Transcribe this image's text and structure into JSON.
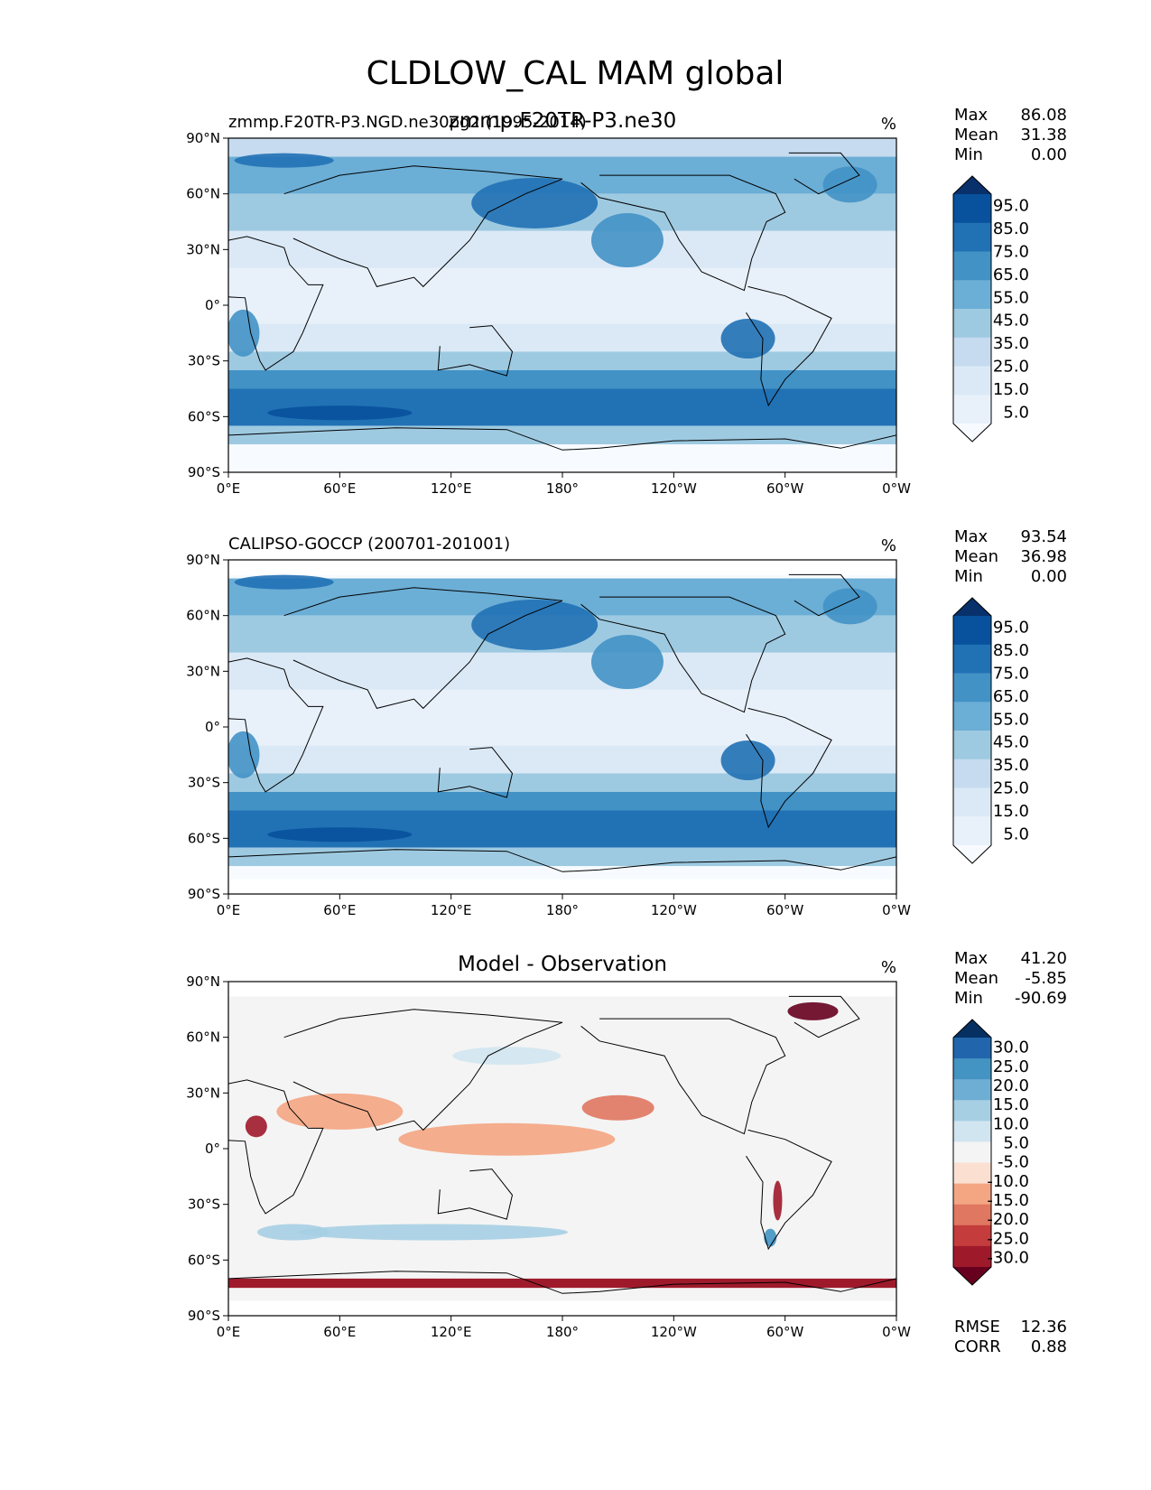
{
  "figure": {
    "title": "CLDLOW_CAL MAM global"
  },
  "axis_ticks": {
    "x": [
      "0°E",
      "60°E",
      "120°E",
      "180°",
      "120°W",
      "60°W",
      "0°W"
    ],
    "y": [
      "90°N",
      "60°N",
      "30°N",
      "0°",
      "30°S",
      "60°S",
      "90°S"
    ]
  },
  "stat_labels": {
    "max": "Max",
    "mean": "Mean",
    "min": "Min",
    "rmse": "RMSE",
    "corr": "CORR"
  },
  "chart_data": [
    {
      "type": "heatmap",
      "title_left": "zmmp.F20TR-P3.NGD.ne30pg2 (1995-2014)",
      "title_center": "zmmp.F20TR-P3.ne30",
      "units": "%",
      "stats": {
        "max": "86.08",
        "mean": "31.38",
        "min": "0.00"
      },
      "colorbar": {
        "labels": [
          "95.0",
          "85.0",
          "75.0",
          "65.0",
          "55.0",
          "45.0",
          "35.0",
          "25.0",
          "15.0",
          "5.0"
        ],
        "colors": [
          "#08306b",
          "#08519c",
          "#2171b5",
          "#4292c6",
          "#6baed6",
          "#9ecae1",
          "#c6dbef",
          "#dbe9f6",
          "#e8f1fa",
          "#f7fbff"
        ]
      },
      "xlim": [
        0,
        360
      ],
      "ylim": [
        -90,
        90
      ]
    },
    {
      "type": "heatmap",
      "title_left": "CALIPSO-GOCCP (200701-201001)",
      "title_center": "",
      "units": "%",
      "stats": {
        "max": "93.54",
        "mean": "36.98",
        "min": "0.00"
      },
      "colorbar": {
        "labels": [
          "95.0",
          "85.0",
          "75.0",
          "65.0",
          "55.0",
          "45.0",
          "35.0",
          "25.0",
          "15.0",
          "5.0"
        ],
        "colors": [
          "#08306b",
          "#08519c",
          "#2171b5",
          "#4292c6",
          "#6baed6",
          "#9ecae1",
          "#c6dbef",
          "#dbe9f6",
          "#e8f1fa",
          "#f7fbff"
        ]
      },
      "xlim": [
        0,
        360
      ],
      "ylim": [
        -90,
        90
      ]
    },
    {
      "type": "heatmap",
      "title_left": "",
      "title_center": "Model - Observation",
      "units": "%",
      "stats": {
        "max": "41.20",
        "mean": "-5.85",
        "min": "-90.69"
      },
      "extra_stats": {
        "rmse": "12.36",
        "corr": "0.88"
      },
      "colorbar": {
        "labels": [
          "30.0",
          "25.0",
          "20.0",
          "15.0",
          "10.0",
          "5.0",
          "-5.0",
          "-10.0",
          "-15.0",
          "-20.0",
          "-25.0",
          "-30.0"
        ],
        "colors": [
          "#053061",
          "#2166ac",
          "#4393c3",
          "#6eaed4",
          "#a7cfe4",
          "#d1e5f0",
          "#f4f4f4",
          "#fbe0d2",
          "#f4a582",
          "#e07760",
          "#c43c3c",
          "#9e1a2b",
          "#67001f"
        ]
      },
      "xlim": [
        0,
        360
      ],
      "ylim": [
        -90,
        90
      ]
    }
  ]
}
